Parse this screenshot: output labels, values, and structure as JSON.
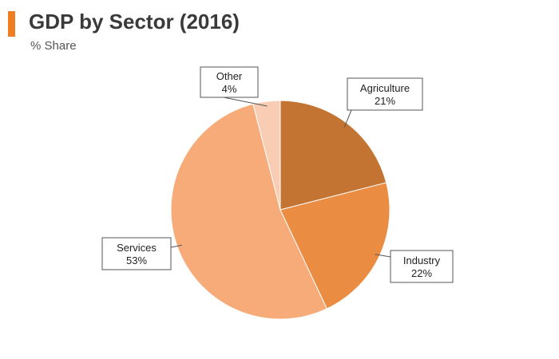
{
  "header": {
    "title": "GDP by Sector (2016)",
    "subtitle": "% Share",
    "accent_color": "#ef7d22"
  },
  "chart_data": {
    "type": "pie",
    "title": "GDP by Sector (2016)",
    "subtitle": "% Share",
    "slices": [
      {
        "label": "Agriculture",
        "value": 21,
        "value_label": "21%",
        "color": "#c47432"
      },
      {
        "label": "Industry",
        "value": 22,
        "value_label": "22%",
        "color": "#ea8c42"
      },
      {
        "label": "Services",
        "value": 53,
        "value_label": "53%",
        "color": "#f7ab78"
      },
      {
        "label": "Other",
        "value": 4,
        "value_label": "4%",
        "color": "#f9cdb3"
      }
    ],
    "start": "12 o'clock",
    "direction": "clockwise",
    "legend": "none"
  }
}
